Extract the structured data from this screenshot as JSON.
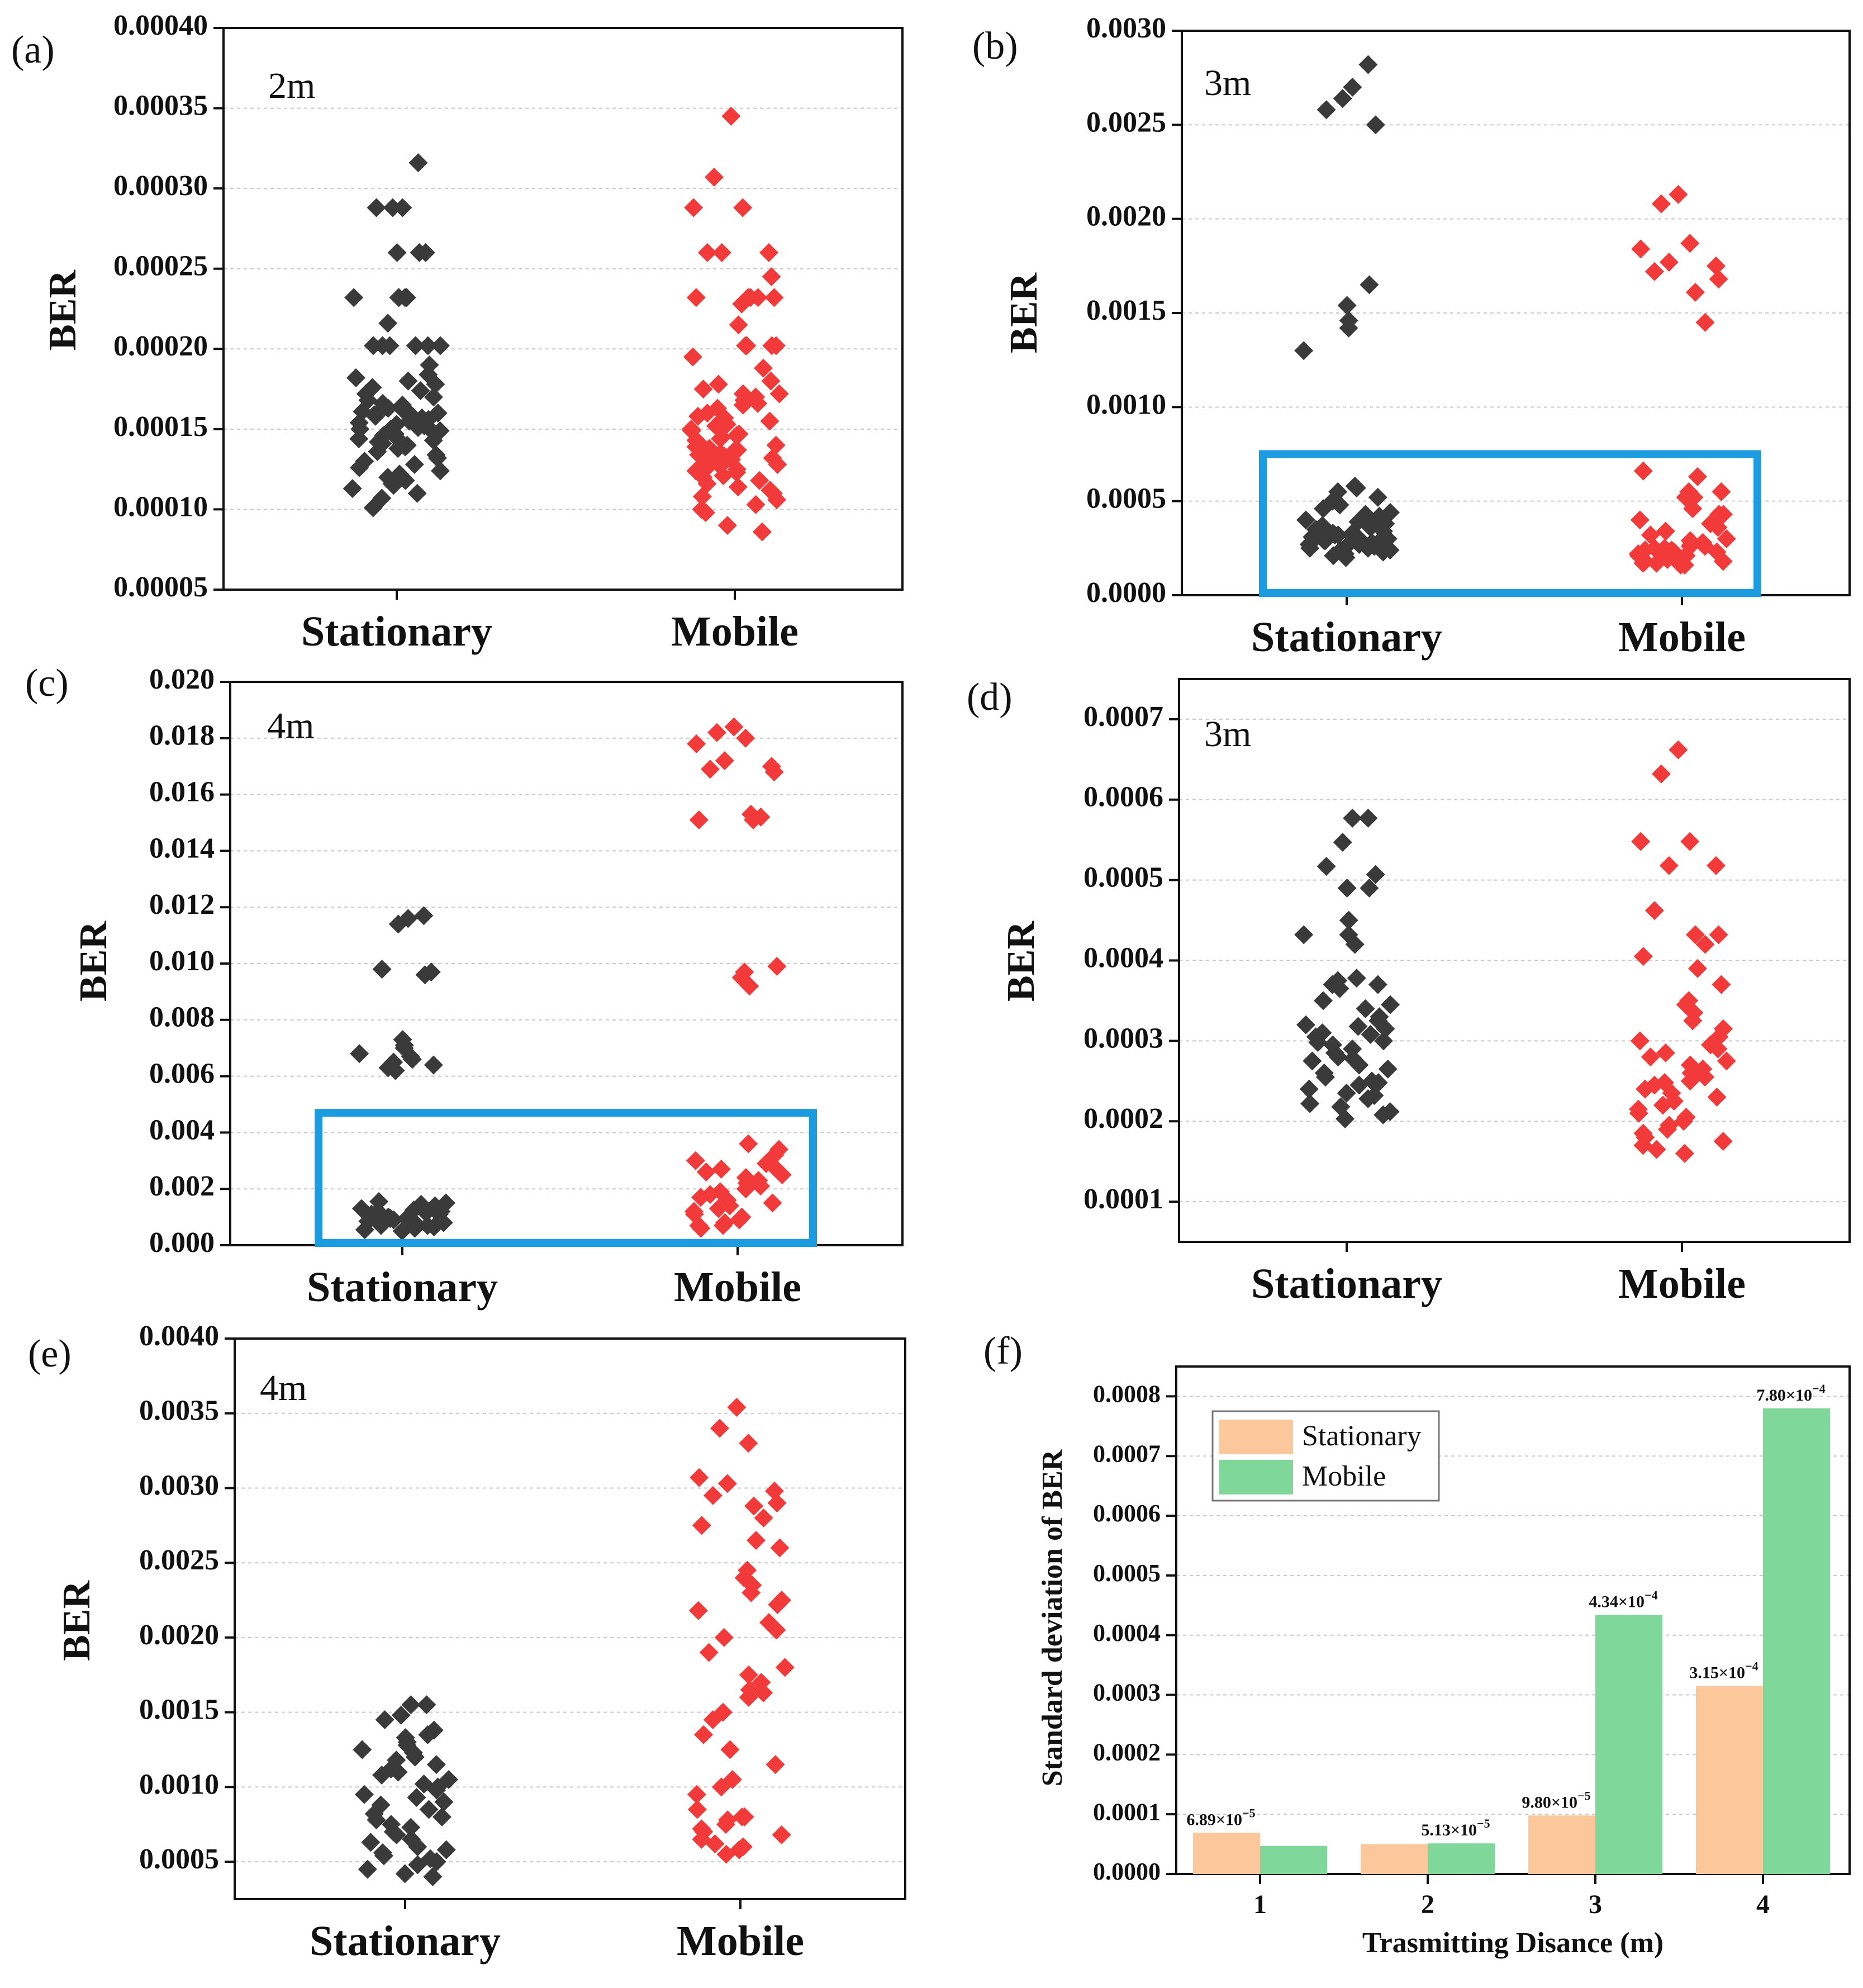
{
  "colors": {
    "stationary_scatter": "#3a3a3a",
    "mobile_scatter": "#f23a3a",
    "stationary_bar": "#fcc79a",
    "mobile_bar": "#7fd79a",
    "highlight_box": "#1b9be0",
    "grid": "#c8c8c8"
  },
  "chart_data": [
    {
      "type": "scatter",
      "panel": "(a)",
      "inset_label": "2m",
      "ylabel": "BER",
      "categories": [
        "Stationary",
        "Mobile"
      ],
      "ylim": [
        5e-05,
        0.0004
      ],
      "yticks": [
        "0.00005",
        "0.00010",
        "0.00015",
        "0.00020",
        "0.00025",
        "0.00030",
        "0.00035",
        "0.00040"
      ],
      "ytick_values": [
        5e-05,
        0.0001,
        0.00015,
        0.0002,
        0.00025,
        0.0003,
        0.00035,
        0.0004
      ],
      "series": [
        {
          "name": "Stationary",
          "values": [
            0.000316,
            0.000288,
            0.000288,
            0.000288,
            0.00026,
            0.00026,
            0.00026,
            0.000232,
            0.000232,
            0.000232,
            0.000232,
            0.000232,
            0.000216,
            0.000202,
            0.000202,
            0.000202,
            0.000202,
            0.000202,
            0.000202,
            0.00019,
            0.000184,
            0.000182,
            0.00018,
            0.000178,
            0.000176,
            0.000174,
            0.000172,
            0.00017,
            0.000168,
            0.000166,
            0.000165,
            0.000164,
            0.000163,
            0.000162,
            0.000161,
            0.00016,
            0.00016,
            0.000159,
            0.000158,
            0.000157,
            0.000156,
            0.000155,
            0.000154,
            0.000153,
            0.000152,
            0.000151,
            0.00015,
            0.00015,
            0.000149,
            0.000148,
            0.000147,
            0.000146,
            0.000145,
            0.000144,
            0.000143,
            0.000142,
            0.000141,
            0.00014,
            0.000139,
            0.000138,
            0.000136,
            0.000134,
            0.000132,
            0.00013,
            0.000128,
            0.000126,
            0.000124,
            0.000122,
            0.00012,
            0.000118,
            0.000116,
            0.000115,
            0.000113,
            0.00011,
            0.000107,
            0.000101
          ]
        },
        {
          "name": "Mobile",
          "values": [
            0.000345,
            0.000307,
            0.000288,
            0.000288,
            0.00026,
            0.00026,
            0.00026,
            0.000245,
            0.000232,
            0.000232,
            0.000232,
            0.000232,
            0.000232,
            0.000228,
            0.000215,
            0.000202,
            0.000202,
            0.000202,
            0.000202,
            0.000195,
            0.000188,
            0.00018,
            0.000178,
            0.000175,
            0.000172,
            0.000172,
            0.00017,
            0.000168,
            0.000166,
            0.000165,
            0.000163,
            0.00016,
            0.000158,
            0.000157,
            0.000155,
            0.000153,
            0.000152,
            0.00015,
            0.000149,
            0.000147,
            0.000146,
            0.000145,
            0.000144,
            0.000143,
            0.000142,
            0.00014,
            0.000139,
            0.000138,
            0.000137,
            0.000136,
            0.000135,
            0.000134,
            0.000133,
            0.000132,
            0.000131,
            0.00013,
            0.000129,
            0.000128,
            0.000127,
            0.000126,
            0.000125,
            0.000124,
            0.000123,
            0.000121,
            0.00012,
            0.000118,
            0.000116,
            0.000114,
            0.000112,
            0.00011,
            0.000108,
            0.000106,
            0.000103,
            0.0001,
            9.8e-05,
            9e-05,
            8.6e-05
          ]
        }
      ]
    },
    {
      "type": "scatter",
      "panel": "(b)",
      "inset_label": "3m",
      "ylabel": "BER",
      "categories": [
        "Stationary",
        "Mobile"
      ],
      "ylim": [
        0,
        0.003
      ],
      "yticks": [
        "0.0000",
        "0.0005",
        "0.0010",
        "0.0015",
        "0.0020",
        "0.0025",
        "0.0030"
      ],
      "ytick_values": [
        0,
        0.0005,
        0.001,
        0.0015,
        0.002,
        0.0025,
        0.003
      ],
      "highlight_box_ylim": [
        0,
        0.00075
      ],
      "series": [
        {
          "name": "Stationary",
          "values": [
            0.00282,
            0.0027,
            0.00264,
            0.00258,
            0.0025,
            0.00165,
            0.00154,
            0.00146,
            0.00142,
            0.0013,
            0.00058,
            0.00057,
            0.00055,
            0.00052,
            0.0005,
            0.00048,
            0.00046,
            0.00044,
            0.00043,
            0.00042,
            0.00041,
            0.0004,
            0.00039,
            0.00038,
            0.00037,
            0.00036,
            0.00035,
            0.00034,
            0.00034,
            0.00033,
            0.00033,
            0.00032,
            0.00032,
            0.00031,
            0.00031,
            0.0003,
            0.0003,
            0.00029,
            0.00029,
            0.00028,
            0.00028,
            0.00027,
            0.00027,
            0.00026,
            0.00026,
            0.00025,
            0.00025,
            0.00024,
            0.00024,
            0.00023,
            0.00022,
            0.00021,
            0.0002
          ]
        },
        {
          "name": "Mobile",
          "values": [
            0.00213,
            0.00208,
            0.00187,
            0.00184,
            0.00177,
            0.00175,
            0.00172,
            0.00168,
            0.00161,
            0.00145,
            0.00066,
            0.00063,
            0.00055,
            0.00055,
            0.00052,
            0.00052,
            0.00046,
            0.00043,
            0.00043,
            0.0004,
            0.00038,
            0.00036,
            0.00034,
            0.00032,
            0.0003,
            0.00029,
            0.00028,
            0.00027,
            0.00026,
            0.00026,
            0.00025,
            0.00025,
            0.00024,
            0.00024,
            0.00023,
            0.00023,
            0.00022,
            0.00022,
            0.00021,
            0.00021,
            0.0002,
            0.0002,
            0.00019,
            0.00019,
            0.00018,
            0.00018,
            0.00017,
            0.00017,
            0.00016,
            0.00016
          ]
        }
      ]
    },
    {
      "type": "scatter",
      "panel": "(c)",
      "inset_label": "4m",
      "ylabel": "BER",
      "categories": [
        "Stationary",
        "Mobile"
      ],
      "ylim": [
        0,
        0.02
      ],
      "yticks": [
        "0.000",
        "0.002",
        "0.004",
        "0.006",
        "0.008",
        "0.010",
        "0.012",
        "0.014",
        "0.016",
        "0.018",
        "0.020"
      ],
      "ytick_values": [
        0,
        0.002,
        0.004,
        0.006,
        0.008,
        0.01,
        0.012,
        0.014,
        0.016,
        0.018,
        0.02
      ],
      "highlight_box_ylim": [
        0,
        0.0047
      ],
      "series": [
        {
          "name": "Stationary",
          "values": [
            0.0117,
            0.0116,
            0.0114,
            0.0098,
            0.0097,
            0.0096,
            0.0073,
            0.0071,
            0.007,
            0.0068,
            0.0067,
            0.0066,
            0.0065,
            0.0064,
            0.0063,
            0.0062,
            0.00155,
            0.0015,
            0.00145,
            0.0014,
            0.00135,
            0.0013,
            0.00125,
            0.0012,
            0.0012,
            0.00115,
            0.0011,
            0.0011,
            0.00105,
            0.001,
            0.001,
            0.00095,
            0.0009,
            0.0009,
            0.00085,
            0.0008,
            0.0008,
            0.00075,
            0.0007,
            0.0007,
            0.00065,
            0.0006,
            0.00055,
            0.0005
          ]
        },
        {
          "name": "Mobile",
          "values": [
            0.0184,
            0.0182,
            0.018,
            0.0178,
            0.0172,
            0.017,
            0.0169,
            0.0168,
            0.0153,
            0.0152,
            0.0151,
            0.0151,
            0.0099,
            0.0097,
            0.0095,
            0.0092,
            0.0036,
            0.0034,
            0.0032,
            0.003,
            0.0029,
            0.0028,
            0.0027,
            0.0026,
            0.0025,
            0.0024,
            0.0023,
            0.0022,
            0.0021,
            0.002,
            0.0019,
            0.0018,
            0.0017,
            0.0016,
            0.0015,
            0.0014,
            0.0013,
            0.0012,
            0.0011,
            0.001,
            0.0009,
            0.0008,
            0.0007,
            0.0007,
            0.0006
          ]
        }
      ]
    },
    {
      "type": "scatter",
      "panel": "(d)",
      "inset_label": "3m",
      "ylabel": "BER",
      "categories": [
        "Stationary",
        "Mobile"
      ],
      "ylim": [
        5e-05,
        0.00075
      ],
      "yticks": [
        "0.0001",
        "0.0002",
        "0.0003",
        "0.0004",
        "0.0005",
        "0.0006",
        "0.0007"
      ],
      "ytick_values": [
        0.0001,
        0.0002,
        0.0003,
        0.0004,
        0.0005,
        0.0006,
        0.0007
      ],
      "series": [
        {
          "name": "Stationary",
          "values": [
            0.000577,
            0.000577,
            0.000547,
            0.000517,
            0.000507,
            0.00049,
            0.00049,
            0.00045,
            0.000432,
            0.000432,
            0.00042,
            0.000378,
            0.000375,
            0.00037,
            0.00037,
            0.000365,
            0.00035,
            0.000345,
            0.00034,
            0.00033,
            0.000325,
            0.00032,
            0.000318,
            0.000315,
            0.00031,
            0.000308,
            0.000305,
            0.0003,
            0.000298,
            0.000295,
            0.00029,
            0.000285,
            0.00028,
            0.000278,
            0.000275,
            0.00027,
            0.000265,
            0.00026,
            0.000255,
            0.00025,
            0.000248,
            0.000245,
            0.00024,
            0.000235,
            0.000232,
            0.000228,
            0.000222,
            0.000218,
            0.000212,
            0.000208,
            0.000203
          ]
        },
        {
          "name": "Mobile",
          "values": [
            0.000662,
            0.000632,
            0.000548,
            0.000548,
            0.000518,
            0.000518,
            0.000462,
            0.000432,
            0.000432,
            0.00042,
            0.000405,
            0.00039,
            0.00037,
            0.00035,
            0.000345,
            0.000335,
            0.000325,
            0.000315,
            0.000305,
            0.0003,
            0.000295,
            0.00029,
            0.000285,
            0.00028,
            0.000275,
            0.00027,
            0.000265,
            0.00026,
            0.000255,
            0.00025,
            0.000248,
            0.000245,
            0.00024,
            0.000235,
            0.00023,
            0.000225,
            0.00022,
            0.000215,
            0.00021,
            0.000205,
            0.0002,
            0.000195,
            0.00019,
            0.000185,
            0.00018,
            0.000175,
            0.00017,
            0.000165,
            0.00016
          ]
        }
      ]
    },
    {
      "type": "scatter",
      "panel": "(e)",
      "inset_label": "4m",
      "ylabel": "BER",
      "categories": [
        "Stationary",
        "Mobile"
      ],
      "ylim": [
        0.00025,
        0.004
      ],
      "yticks": [
        "0.0005",
        "0.0010",
        "0.0015",
        "0.0020",
        "0.0025",
        "0.0030",
        "0.0035",
        "0.0040"
      ],
      "ytick_values": [
        0.0005,
        0.001,
        0.0015,
        0.002,
        0.0025,
        0.003,
        0.0035,
        0.004
      ],
      "series": [
        {
          "name": "Stationary",
          "values": [
            0.00155,
            0.00155,
            0.00148,
            0.00145,
            0.00138,
            0.00135,
            0.00133,
            0.0013,
            0.00128,
            0.00125,
            0.00123,
            0.0012,
            0.00118,
            0.00115,
            0.00112,
            0.0011,
            0.00108,
            0.00105,
            0.00102,
            0.001,
            0.00098,
            0.00095,
            0.00093,
            0.0009,
            0.00088,
            0.00085,
            0.00082,
            0.0008,
            0.00078,
            0.00075,
            0.00073,
            0.0007,
            0.00068,
            0.00065,
            0.00063,
            0.0006,
            0.00058,
            0.00056,
            0.00054,
            0.00052,
            0.0005,
            0.00048,
            0.00045,
            0.00042,
            0.0004
          ]
        },
        {
          "name": "Mobile",
          "values": [
            0.00354,
            0.0034,
            0.0033,
            0.00307,
            0.00303,
            0.00298,
            0.00295,
            0.0029,
            0.00288,
            0.0028,
            0.00275,
            0.00265,
            0.0026,
            0.00245,
            0.0024,
            0.00235,
            0.0023,
            0.00225,
            0.00222,
            0.00218,
            0.0021,
            0.00205,
            0.002,
            0.0019,
            0.0018,
            0.00175,
            0.0017,
            0.00165,
            0.00163,
            0.0016,
            0.0015,
            0.00145,
            0.00135,
            0.00125,
            0.00115,
            0.00105,
            0.001,
            0.00095,
            0.00085,
            0.0008,
            0.0008,
            0.00078,
            0.00075,
            0.00072,
            0.0007,
            0.00068,
            0.00065,
            0.00062,
            0.0006,
            0.00058,
            0.00055
          ]
        }
      ]
    },
    {
      "type": "bar",
      "panel": "(f)",
      "xlabel": "Trasmitting Disance (m)",
      "ylabel": "Standard deviation of BER",
      "categories": [
        "1",
        "2",
        "3",
        "4"
      ],
      "ylim": [
        0,
        0.00085
      ],
      "yticks": [
        "0.0000",
        "0.0001",
        "0.0002",
        "0.0003",
        "0.0004",
        "0.0005",
        "0.0006",
        "0.0007",
        "0.0008"
      ],
      "ytick_values": [
        0,
        0.0001,
        0.0002,
        0.0003,
        0.0004,
        0.0005,
        0.0006,
        0.0007,
        0.0008
      ],
      "legend_position": "upper-left",
      "series": [
        {
          "name": "Stationary",
          "values": [
            6.89e-05,
            5e-05,
            9.8e-05,
            0.000315
          ]
        },
        {
          "name": "Mobile",
          "values": [
            4.7e-05,
            5.13e-05,
            0.000434,
            0.00078
          ]
        }
      ],
      "annotations": [
        {
          "category": "1",
          "series": "Stationary",
          "mantissa": "6.89×10",
          "exponent": "−5"
        },
        {
          "category": "2",
          "series": "Mobile",
          "mantissa": "5.13×10",
          "exponent": "−5"
        },
        {
          "category": "3",
          "series": "Stationary",
          "mantissa": "9.80×10",
          "exponent": "−5"
        },
        {
          "category": "3",
          "series": "Mobile",
          "mantissa": "4.34×10",
          "exponent": "−4"
        },
        {
          "category": "4",
          "series": "Stationary",
          "mantissa": "3.15×10",
          "exponent": "−4"
        },
        {
          "category": "4",
          "series": "Mobile",
          "mantissa": "7.80×10",
          "exponent": "−4"
        }
      ]
    }
  ]
}
